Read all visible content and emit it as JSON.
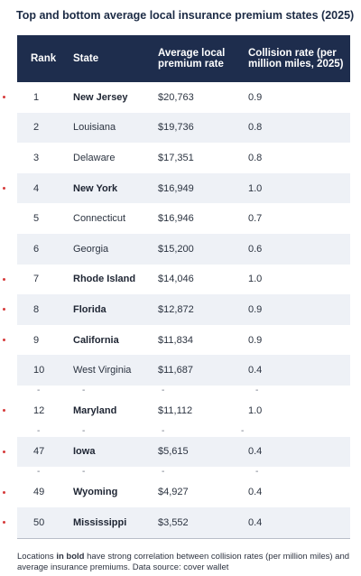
{
  "title": "Top and bottom average local insurance premium states (2025)",
  "colors": {
    "header_bg": "#1e2d4d",
    "header_text": "#ffffff",
    "row_shade": "#eef1f6",
    "marker_dot": "#d63b3b",
    "title_text": "#1c2b45"
  },
  "table": {
    "headers": {
      "rank": "Rank",
      "state": "State",
      "premium": "Average local premium rate",
      "collision": "Collision rate (per million miles, 2025)"
    },
    "rows": [
      {
        "rank": "1",
        "state": "New Jersey",
        "premium": "$20,763",
        "collision": "0.9",
        "bold": true,
        "marked": true
      },
      {
        "rank": "2",
        "state": "Louisiana",
        "premium": "$19,736",
        "collision": "0.8",
        "bold": false,
        "marked": false
      },
      {
        "rank": "3",
        "state": "Delaware",
        "premium": "$17,351",
        "collision": "0.8",
        "bold": false,
        "marked": false
      },
      {
        "rank": "4",
        "state": "New York",
        "premium": "$16,949",
        "collision": "1.0",
        "bold": true,
        "marked": true
      },
      {
        "rank": "5",
        "state": "Connecticut",
        "premium": "$16,946",
        "collision": "0.7",
        "bold": false,
        "marked": false
      },
      {
        "rank": "6",
        "state": "Georgia",
        "premium": "$15,200",
        "collision": "0.6",
        "bold": false,
        "marked": false
      },
      {
        "rank": "7",
        "state": "Rhode Island",
        "premium": "$14,046",
        "collision": "1.0",
        "bold": true,
        "marked": true
      },
      {
        "rank": "8",
        "state": "Florida",
        "premium": "$12,872",
        "collision": "0.9",
        "bold": true,
        "marked": true
      },
      {
        "rank": "9",
        "state": "California",
        "premium": "$11,834",
        "collision": "0.9",
        "bold": true,
        "marked": true
      },
      {
        "rank": "10",
        "state": "West Virginia",
        "premium": "$11,687",
        "collision": "0.4",
        "bold": false,
        "marked": false
      },
      {
        "gap": true,
        "rank": "-",
        "state": "-",
        "premium": "-",
        "collision": "-"
      },
      {
        "rank": "12",
        "state": "Maryland",
        "premium": "$11,112",
        "collision": "1.0",
        "bold": true,
        "marked": true
      },
      {
        "gap": true,
        "rank": "-",
        "state": "-",
        "premium": "-",
        "collision": "-"
      },
      {
        "rank": "47",
        "state": "Iowa",
        "premium": "$5,615",
        "collision": "0.4",
        "bold": true,
        "marked": true
      },
      {
        "gap": true,
        "rank": "-",
        "state": "-",
        "premium": "-",
        "collision": "-"
      },
      {
        "rank": "49",
        "state": "Wyoming",
        "premium": "$4,927",
        "collision": "0.4",
        "bold": true,
        "marked": true
      },
      {
        "rank": "50",
        "state": "Mississippi",
        "premium": "$3,552",
        "collision": "0.4",
        "bold": true,
        "marked": true
      }
    ]
  },
  "footnote": {
    "prefix": "Locations ",
    "bold_part": "in bold",
    "suffix": " have strong correlation between collision rates (per million miles) and average insurance premiums. Data source: cover wallet"
  }
}
